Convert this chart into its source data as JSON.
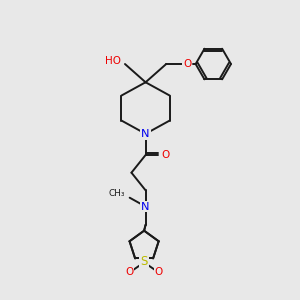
{
  "bg_color": "#e8e8e8",
  "bond_color": "#1a1a1a",
  "N_color": "#0000ee",
  "O_color": "#ee0000",
  "S_color": "#bbbb00",
  "lw": 1.4,
  "fs": 7.2,
  "figsize": [
    3.0,
    3.0
  ],
  "dpi": 100,
  "xlim": [
    0,
    10
  ],
  "ylim": [
    0,
    10
  ]
}
